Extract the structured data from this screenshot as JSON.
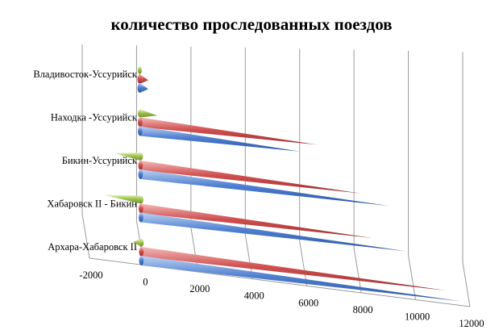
{
  "chart_data": {
    "type": "bar",
    "orientation": "horizontal",
    "style": "3d-cone",
    "title": "количество проследованных поездов",
    "categories": [
      "Архара-Хабаровск II",
      "Хабаровск II - Бикин",
      "Бикин-Уссурийск",
      "Находка -Уссурийск",
      "Владивосток-Уссурийск"
    ],
    "series": [
      {
        "color": "#4f7fd0",
        "values": [
          11200,
          9300,
          8700,
          5600,
          300
        ]
      },
      {
        "color": "#d05050",
        "values": [
          10700,
          8100,
          7700,
          6200,
          300
        ]
      },
      {
        "color": "#9dc24c",
        "values": [
          -300,
          -1300,
          -900,
          600,
          0
        ]
      }
    ],
    "xlim": [
      -2000,
      12000
    ],
    "xticks": [
      "-2000",
      "0",
      "2000",
      "4000",
      "6000",
      "8000",
      "10000",
      "12000"
    ],
    "gridlines": true,
    "legend": "none"
  }
}
